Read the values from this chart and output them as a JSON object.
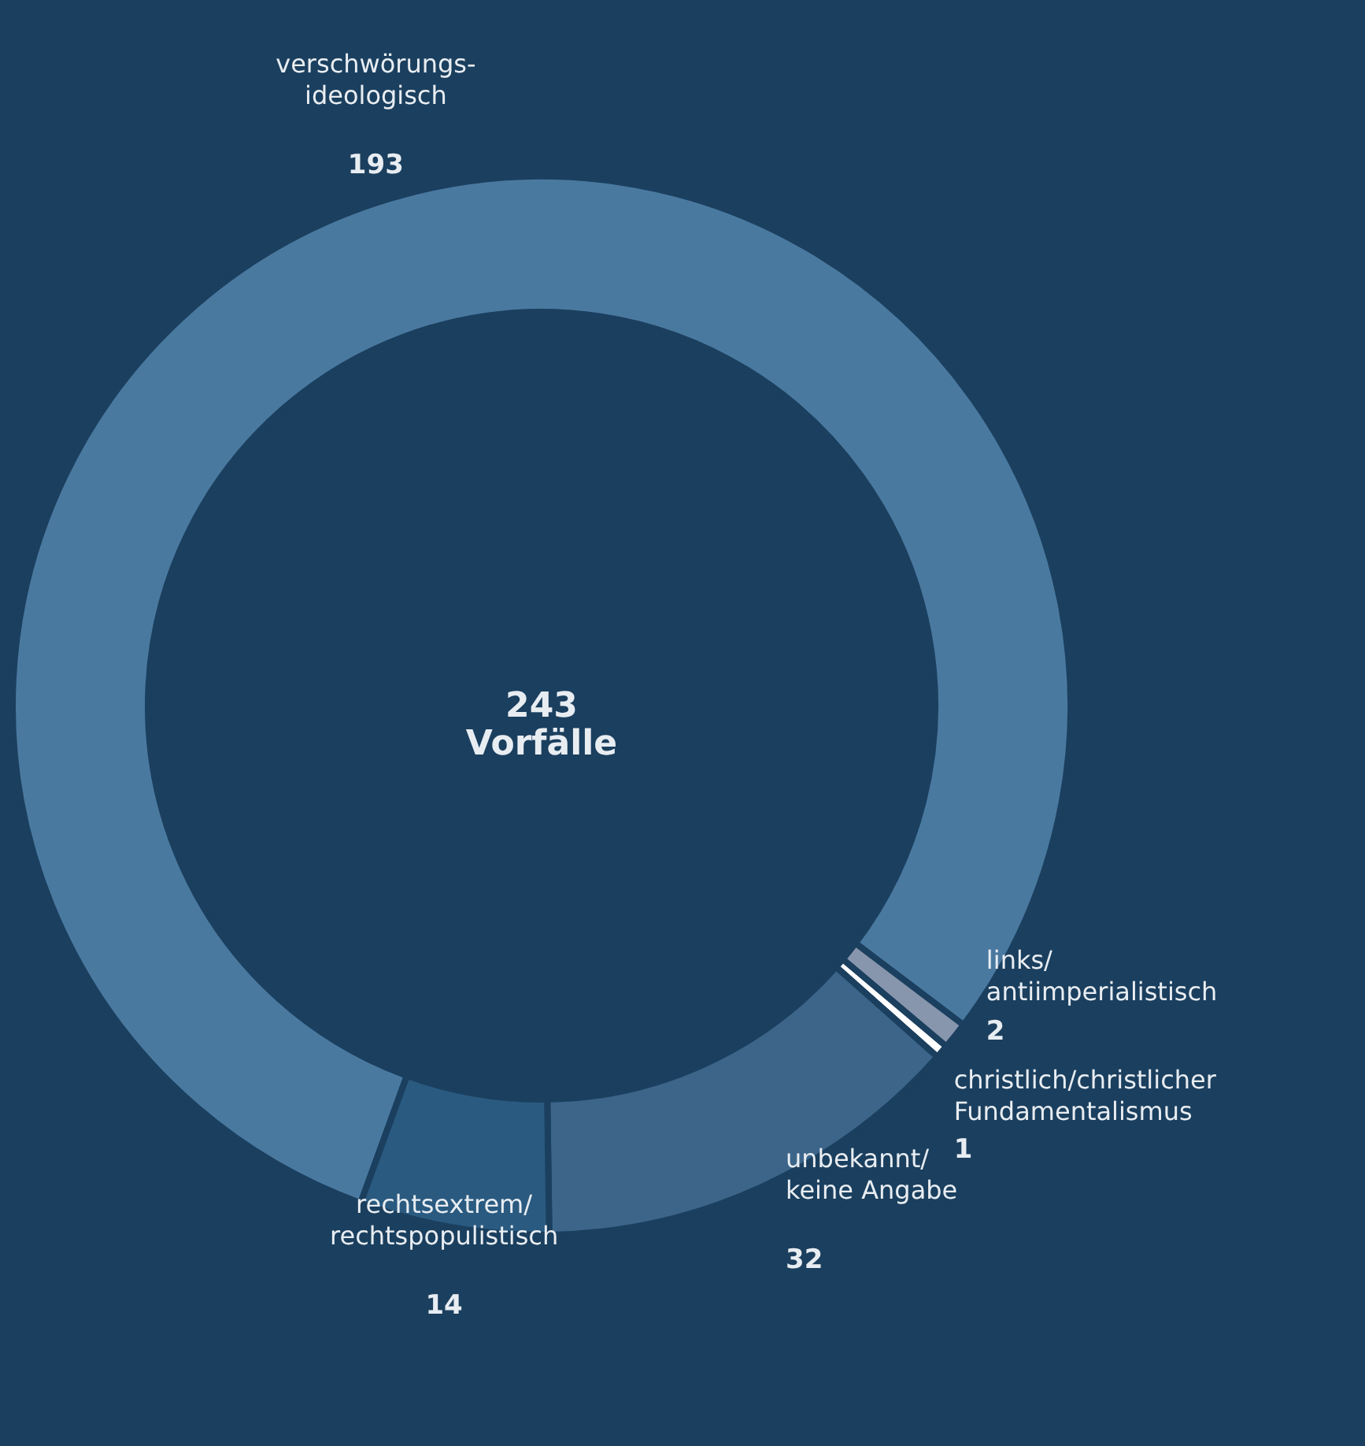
{
  "chart_data": {
    "type": "donut",
    "categories": [
      "verschwörungs-\nideologisch",
      "links/\nantiimperialistisch",
      "christlich/christlicher\nFundamentalismus",
      "unbekannt/\nkeine Angabe",
      "rechtsextrem/\nrechtspopulistisch"
    ],
    "values": [
      193,
      2,
      1,
      32,
      14
    ],
    "colors": [
      "#4a79a0",
      "#8796ad",
      "#ffffff",
      "#3c6589",
      "#2a5a80"
    ],
    "annotations": [
      "243\nVorfälle"
    ],
    "data_labels": true
  }
}
